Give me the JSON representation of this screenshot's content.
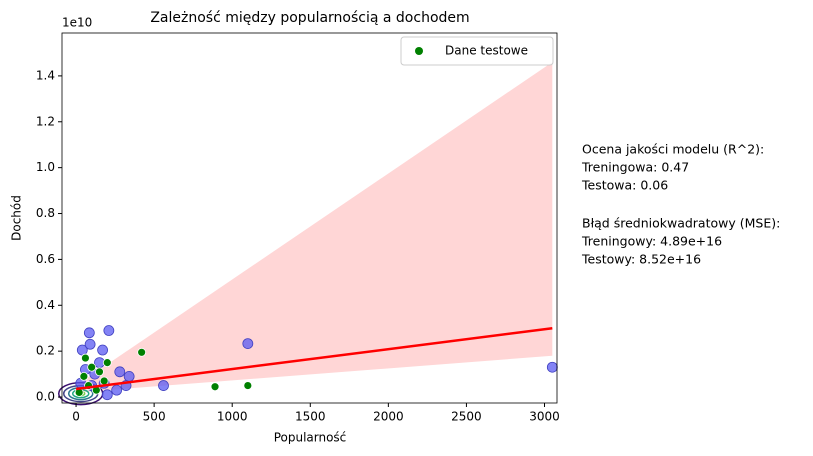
{
  "chart_data": {
    "type": "scatter",
    "title": "Zależność między popularnością a dochodem",
    "x_label": "Popularność",
    "y_label": "Dochód",
    "y_offset_label": "1e10",
    "xlim": [
      -90,
      3080
    ],
    "ylim": [
      -0.026,
      1.587
    ],
    "xticks": [
      0,
      500,
      1000,
      1500,
      2000,
      2500,
      3000
    ],
    "yticks": [
      {
        "value": 0,
        "label": "0.0"
      },
      0.2,
      0.4,
      0.6,
      0.8,
      {
        "value": 1,
        "label": "1.0"
      },
      1.2,
      1.4
    ],
    "series": [
      {
        "color": "#5a5af2",
        "x": [
          40,
          85,
          90,
          210,
          170,
          1100,
          3050,
          560,
          340,
          280,
          260,
          200,
          320,
          150,
          120,
          60,
          30,
          100,
          180
        ],
        "values": [
          0.205,
          0.28,
          0.23,
          0.29,
          0.205,
          0.233,
          0.13,
          0.05,
          0.09,
          0.11,
          0.03,
          0.01,
          0.05,
          0.15,
          0.1,
          0.12,
          0.06,
          0.05,
          0.06
        ]
      },
      {
        "name": "Dane testowe",
        "color": "#008000",
        "x": [
          60,
          200,
          420,
          890,
          1100,
          100,
          150,
          180,
          50,
          130,
          80,
          20
        ],
        "values": [
          0.17,
          0.15,
          0.195,
          0.045,
          0.05,
          0.13,
          0.11,
          0.07,
          0.09,
          0.03,
          0.05,
          0.02
        ]
      }
    ],
    "regression": {
      "color": "#ff0000",
      "x": [
        0,
        3050
      ],
      "values": [
        0.035,
        0.3
      ]
    },
    "band": {
      "color": "#ffd6d6",
      "x": [
        0,
        3050
      ],
      "upper": [
        0.05,
        1.46
      ],
      "lower": [
        0.02,
        0.18
      ]
    },
    "legend": "upper right",
    "annotation": [
      [
        "Ocena jakości modelu (R^2):",
        "Treningowa: 0.47",
        "Testowa: 0.06"
      ],
      [
        "Błąd średniokwadratowy (MSE):",
        "Treningowy: 4.89e+16",
        "Testowy: 8.52e+16"
      ]
    ]
  }
}
